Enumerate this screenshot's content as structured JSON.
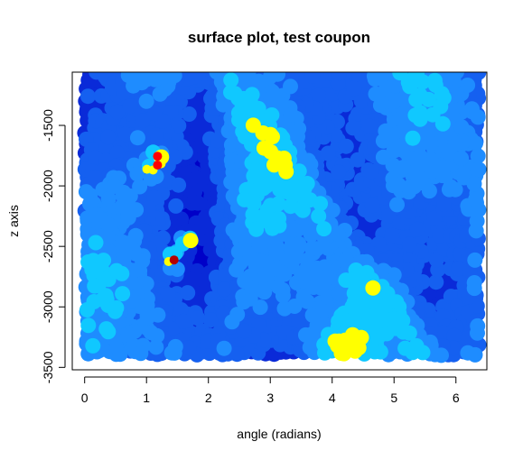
{
  "chart_data": {
    "type": "scatter",
    "title": "surface plot, test coupon",
    "xlabel": "angle (radians)",
    "ylabel": "z axis",
    "xlim": [
      -0.2,
      6.5
    ],
    "ylim": [
      -3520,
      -1060
    ],
    "x_ticks": [
      0,
      1,
      2,
      3,
      4,
      5,
      6
    ],
    "y_ticks": [
      -3500,
      -3000,
      -2500,
      -2000,
      -1500
    ],
    "x_tick_labels": [
      "0",
      "1",
      "2",
      "3",
      "4",
      "5",
      "6"
    ],
    "y_tick_labels": [
      "-3500",
      "-3000",
      "-2500",
      "-2000",
      "-1500"
    ],
    "point_domain": {
      "x": [
        0,
        6.283
      ],
      "y": [
        -3400,
        -1100
      ]
    },
    "color_scale": [
      "#0000c8",
      "#0a2ad8",
      "#1560f0",
      "#1e8cff",
      "#10c8ff",
      "#ffff00",
      "#ff8000",
      "#ff0000",
      "#b40000"
    ],
    "hotspots": [
      {
        "x": 1.15,
        "y": -1790,
        "intensity": 1.0
      },
      {
        "x": 1.05,
        "y": -1880,
        "intensity": 0.55
      },
      {
        "x": 1.45,
        "y": -2620,
        "intensity": 0.85
      },
      {
        "x": 1.65,
        "y": -2460,
        "intensity": 0.45
      }
    ],
    "grid": false,
    "legend": "none"
  }
}
